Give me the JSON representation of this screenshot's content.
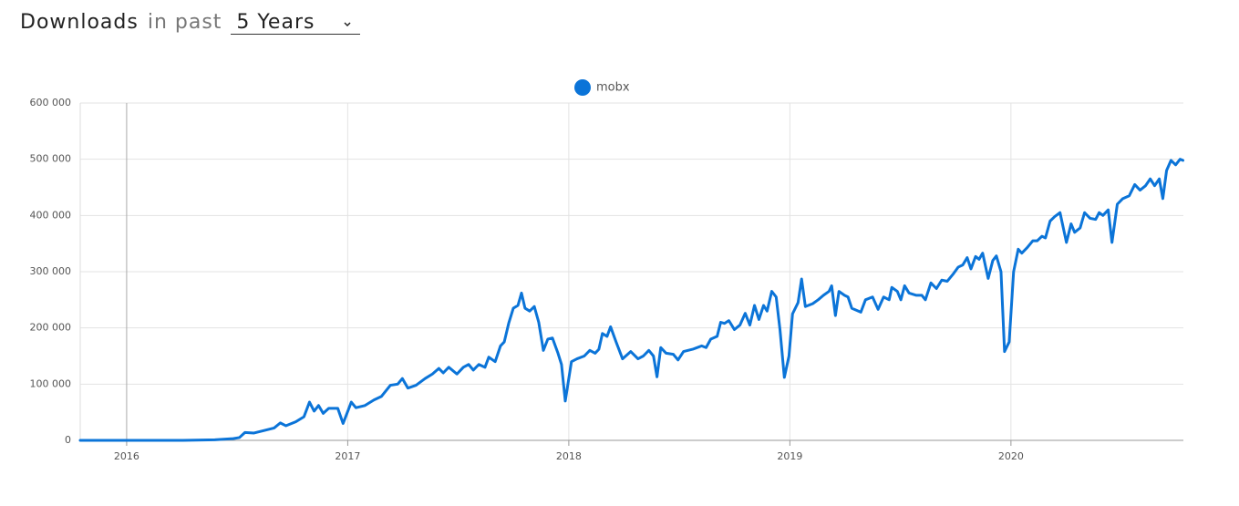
{
  "header": {
    "title": "Downloads",
    "period_label": "in past",
    "period": "5 Years"
  },
  "chart_data": {
    "type": "line",
    "x": [
      2015.79,
      2016.255,
      2016.399,
      2016.481,
      2016.51,
      2016.535,
      2016.576,
      2016.626,
      2016.667,
      2016.695,
      2016.72,
      2016.765,
      2016.802,
      2016.827,
      2016.848,
      2016.868,
      2016.889,
      2016.914,
      2016.955,
      2016.979,
      2017.016,
      2017.037,
      2017.078,
      2017.119,
      2017.152,
      2017.193,
      2017.226,
      2017.247,
      2017.272,
      2017.309,
      2017.35,
      2017.383,
      2017.412,
      2017.432,
      2017.457,
      2017.494,
      2017.523,
      2017.547,
      2017.568,
      2017.593,
      2017.621,
      2017.638,
      2017.667,
      2017.691,
      2017.708,
      2017.728,
      2017.749,
      2017.77,
      2017.786,
      2017.802,
      2017.823,
      2017.844,
      2017.864,
      2017.885,
      2017.905,
      2017.926,
      2017.951,
      2017.967,
      2017.984,
      2018.012,
      2018.037,
      2018.07,
      2018.095,
      2018.119,
      2018.136,
      2018.152,
      2018.173,
      2018.189,
      2018.214,
      2018.243,
      2018.28,
      2018.313,
      2018.337,
      2018.362,
      2018.383,
      2018.399,
      2018.416,
      2018.44,
      2018.473,
      2018.494,
      2018.519,
      2018.56,
      2018.601,
      2018.621,
      2018.642,
      2018.671,
      2018.687,
      2018.704,
      2018.724,
      2018.749,
      2018.774,
      2018.798,
      2018.819,
      2018.84,
      2018.86,
      2018.881,
      2018.897,
      2018.918,
      2018.938,
      2018.955,
      2018.975,
      2018.996,
      2019.012,
      2019.037,
      2019.053,
      2019.07,
      2019.103,
      2019.128,
      2019.152,
      2019.177,
      2019.189,
      2019.206,
      2019.222,
      2019.247,
      2019.263,
      2019.28,
      2019.321,
      2019.342,
      2019.374,
      2019.399,
      2019.424,
      2019.449,
      2019.461,
      2019.486,
      2019.502,
      2019.519,
      2019.539,
      2019.572,
      2019.597,
      2019.613,
      2019.638,
      2019.663,
      2019.687,
      2019.712,
      2019.737,
      2019.761,
      2019.782,
      2019.802,
      2019.819,
      2019.84,
      2019.856,
      2019.872,
      2019.897,
      2019.918,
      2019.934,
      2019.955,
      2019.971,
      2019.992,
      2020.012,
      2020.033,
      2020.049,
      2020.074,
      2020.099,
      2020.119,
      2020.14,
      2020.156,
      2020.177,
      2020.198,
      2020.222,
      2020.251,
      2020.272,
      2020.288,
      2020.313,
      2020.333,
      2020.358,
      2020.383,
      2020.399,
      2020.416,
      2020.44,
      2020.457,
      2020.481,
      2020.506,
      2020.535,
      2020.56,
      2020.584,
      2020.609,
      2020.63,
      2020.65,
      2020.671,
      2020.687,
      2020.704,
      2020.724,
      2020.745,
      2020.765,
      2020.778
    ],
    "series": [
      {
        "name": "mobx",
        "color": "#0b74d8",
        "values": [
          0,
          0,
          1000,
          3000,
          5000,
          14000,
          13000,
          18000,
          22000,
          31000,
          26000,
          33000,
          42000,
          68000,
          52000,
          62000,
          48000,
          57000,
          57000,
          30000,
          68000,
          58000,
          62000,
          72000,
          78000,
          98000,
          100000,
          110000,
          93000,
          98000,
          110000,
          118000,
          128000,
          120000,
          130000,
          118000,
          130000,
          135000,
          125000,
          135000,
          130000,
          148000,
          140000,
          168000,
          175000,
          208000,
          235000,
          240000,
          262000,
          235000,
          230000,
          238000,
          210000,
          160000,
          180000,
          182000,
          155000,
          135000,
          70000,
          140000,
          145000,
          150000,
          160000,
          155000,
          162000,
          190000,
          185000,
          202000,
          175000,
          145000,
          158000,
          145000,
          150000,
          160000,
          150000,
          113000,
          165000,
          155000,
          153000,
          143000,
          158000,
          162000,
          168000,
          165000,
          180000,
          185000,
          210000,
          208000,
          213000,
          197000,
          205000,
          226000,
          205000,
          240000,
          215000,
          240000,
          230000,
          265000,
          255000,
          198000,
          112000,
          150000,
          225000,
          245000,
          287000,
          238000,
          243000,
          250000,
          258000,
          265000,
          275000,
          222000,
          265000,
          258000,
          255000,
          235000,
          228000,
          250000,
          255000,
          233000,
          255000,
          250000,
          272000,
          265000,
          250000,
          275000,
          262000,
          258000,
          258000,
          250000,
          280000,
          270000,
          285000,
          283000,
          295000,
          308000,
          312000,
          325000,
          305000,
          327000,
          322000,
          333000,
          288000,
          320000,
          328000,
          300000,
          158000,
          175000,
          300000,
          340000,
          333000,
          343000,
          355000,
          355000,
          363000,
          360000,
          390000,
          398000,
          405000,
          352000,
          385000,
          370000,
          378000,
          405000,
          395000,
          393000,
          405000,
          400000,
          410000,
          352000,
          420000,
          430000,
          435000,
          455000,
          445000,
          453000,
          465000,
          453000,
          465000,
          430000,
          480000,
          498000,
          490000,
          500000,
          498000
        ]
      }
    ],
    "xlim": [
      2015.79,
      2020.78
    ],
    "xticks": [
      2016,
      2017,
      2018,
      2019,
      2020
    ],
    "ylim": [
      0,
      600000
    ],
    "yticks": [
      {
        "value": 0,
        "label": "0"
      },
      {
        "value": 100000,
        "label": "100 000"
      },
      {
        "value": 200000,
        "label": "200 000"
      },
      {
        "value": 300000,
        "label": "300 000"
      },
      {
        "value": 400000,
        "label": "400 000"
      },
      {
        "value": 500000,
        "label": "500 000"
      },
      {
        "value": 600000,
        "label": "600 000"
      }
    ],
    "grid": true
  }
}
